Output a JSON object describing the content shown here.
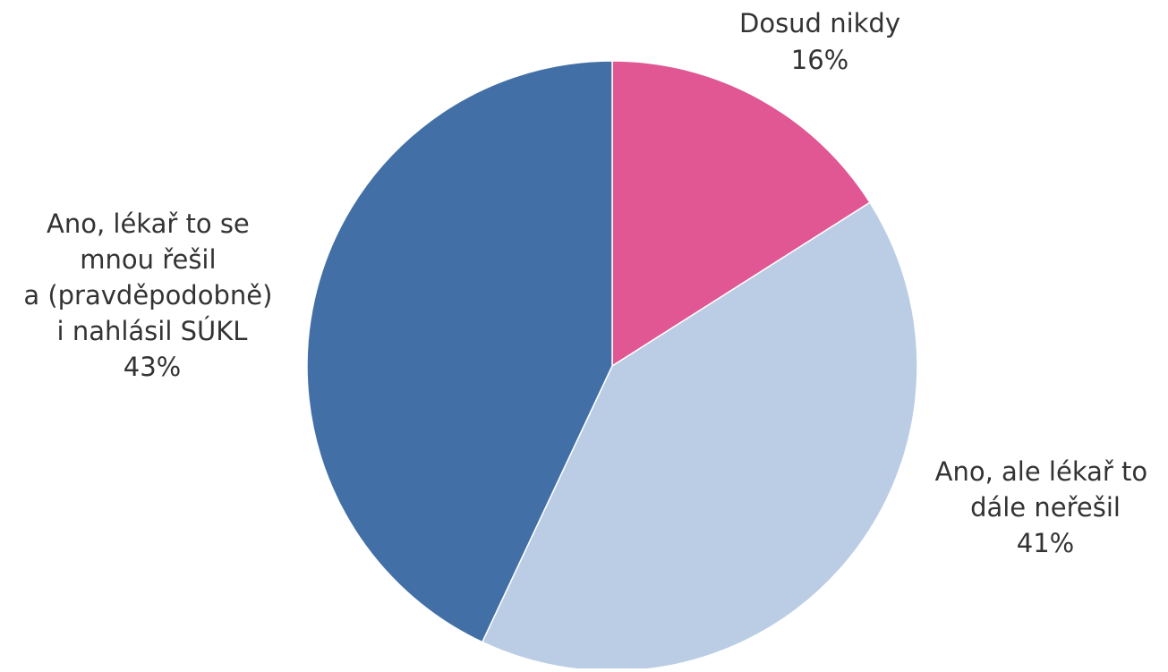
{
  "chart_data": {
    "type": "pie",
    "title": "",
    "start_angle_deg": 0,
    "direction": "clockwise",
    "slices": [
      {
        "label": "Dosud nikdy",
        "value": 16,
        "value_label": "16%",
        "color": "#E05793"
      },
      {
        "label": "Ano, ale lékař to dále neřešil",
        "value": 41,
        "value_label": "41%",
        "color": "#BBCDE4"
      },
      {
        "label": "Ano, lékař to se mnou řešil a (pravděpodobně) i nahlásil SÚKL",
        "value": 43,
        "value_label": "43%",
        "color": "#4270A6"
      }
    ]
  }
}
